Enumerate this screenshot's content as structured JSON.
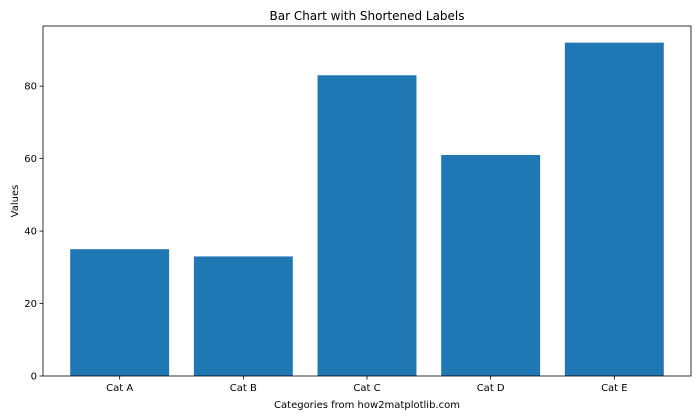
{
  "chart_data": {
    "type": "bar",
    "title": "Bar Chart with Shortened Labels",
    "xlabel": "Categories from how2matplotlib.com",
    "ylabel": "Values",
    "categories": [
      "Cat A",
      "Cat B",
      "Cat C",
      "Cat D",
      "Cat E"
    ],
    "values": [
      35,
      33,
      83,
      61,
      92
    ],
    "ylim": [
      0,
      96.6
    ],
    "yticks": [
      0,
      20,
      40,
      60,
      80
    ],
    "bar_color": "#1f77b4",
    "grid": false,
    "legend": "none"
  }
}
